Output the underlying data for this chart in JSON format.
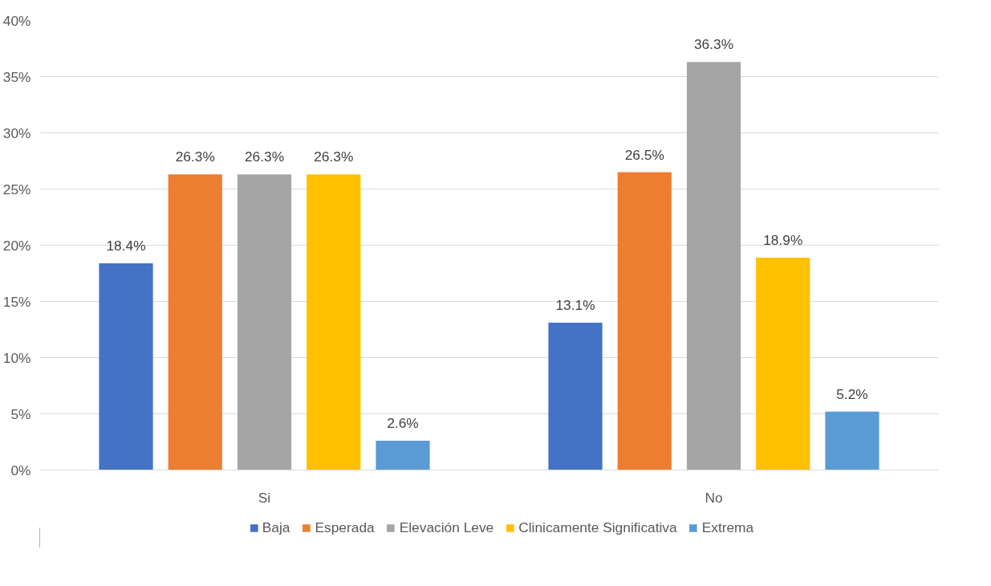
{
  "chart_data": {
    "type": "bar",
    "categories": [
      "Si",
      "No"
    ],
    "series": [
      {
        "name": "Baja",
        "color": "#4472c4",
        "values": [
          18.4,
          13.1
        ],
        "value_labels": [
          "18.4%",
          "13.1%"
        ]
      },
      {
        "name": "Esperada",
        "color": "#ed7d31",
        "values": [
          26.3,
          26.5
        ],
        "value_labels": [
          "26.3%",
          "26.5%"
        ]
      },
      {
        "name": "Elevación Leve",
        "color": "#a5a5a5",
        "values": [
          26.3,
          36.3
        ],
        "value_labels": [
          "26.3%",
          "36.3%"
        ]
      },
      {
        "name": "Clinicamente Significativa",
        "color": "#ffc000",
        "values": [
          26.3,
          18.9
        ],
        "value_labels": [
          "26.3%",
          "18.9%"
        ]
      },
      {
        "name": "Extrema",
        "color": "#5b9bd5",
        "values": [
          2.6,
          5.2
        ],
        "value_labels": [
          "2.6%",
          "5.2%"
        ]
      }
    ],
    "ylim": [
      0,
      40
    ],
    "yticks": [
      {
        "value": 0,
        "label": "0%"
      },
      {
        "value": 5,
        "label": "5%"
      },
      {
        "value": 10,
        "label": "10%"
      },
      {
        "value": 15,
        "label": "15%"
      },
      {
        "value": 20,
        "label": "20%"
      },
      {
        "value": 25,
        "label": "25%"
      },
      {
        "value": 30,
        "label": "30%"
      },
      {
        "value": 35,
        "label": "35%"
      },
      {
        "value": 40,
        "label": "40%"
      }
    ],
    "grid": "y",
    "legend": "bottom"
  }
}
